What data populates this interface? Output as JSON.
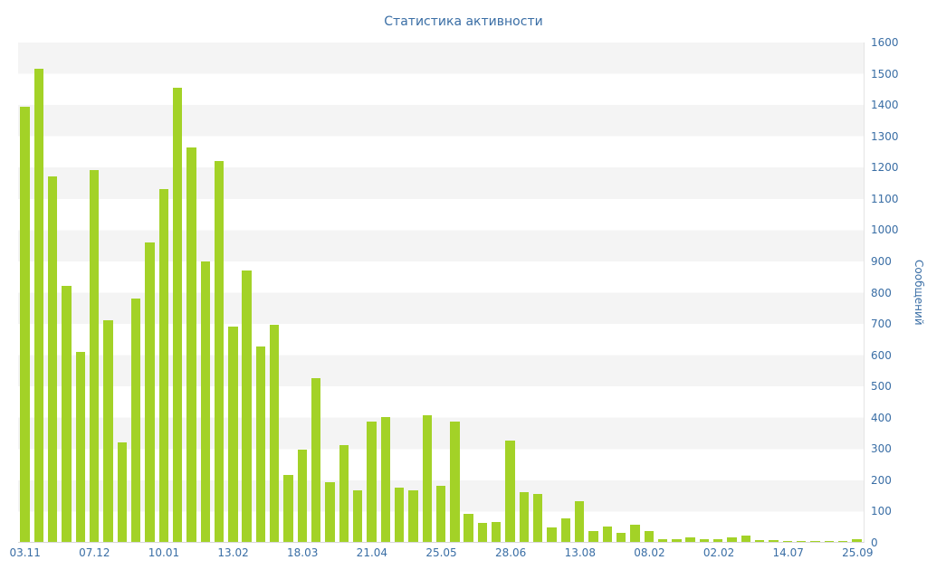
{
  "chart_data": {
    "type": "bar",
    "title": "Статистика активности",
    "ylabel": "Сообщений",
    "xlabel": "",
    "ylim": [
      0,
      1600
    ],
    "y_tick_step": 100,
    "y_ticks": [
      0,
      100,
      200,
      300,
      400,
      500,
      600,
      700,
      800,
      900,
      1000,
      1100,
      1200,
      1300,
      1400,
      1500,
      1600
    ],
    "legend": "none",
    "grid": "striped-bands",
    "bar_color": "#a3d227",
    "axis_text_color": "#3a6ea5",
    "stripe_color": "#f4f4f4",
    "values": [
      1395,
      1515,
      1170,
      820,
      610,
      1190,
      710,
      320,
      780,
      960,
      1130,
      1455,
      1265,
      900,
      1220,
      690,
      870,
      625,
      695,
      215,
      295,
      525,
      190,
      310,
      165,
      385,
      400,
      175,
      165,
      405,
      180,
      385,
      90,
      60,
      65,
      325,
      160,
      155,
      45,
      75,
      130,
      35,
      50,
      30,
      55,
      35,
      10,
      10,
      15,
      10,
      10,
      15,
      20,
      5,
      5,
      3,
      3,
      3,
      3,
      3,
      10
    ],
    "x_tick_positions": [
      0,
      5,
      10,
      15,
      20,
      25,
      30,
      35,
      40,
      45,
      50,
      55,
      60
    ],
    "x_tick_labels": [
      "03.11",
      "07.12",
      "10.01",
      "13.02",
      "18.03",
      "21.04",
      "25.05",
      "28.06",
      "13.08",
      "08.02",
      "02.02",
      "14.07",
      "25.09"
    ]
  }
}
